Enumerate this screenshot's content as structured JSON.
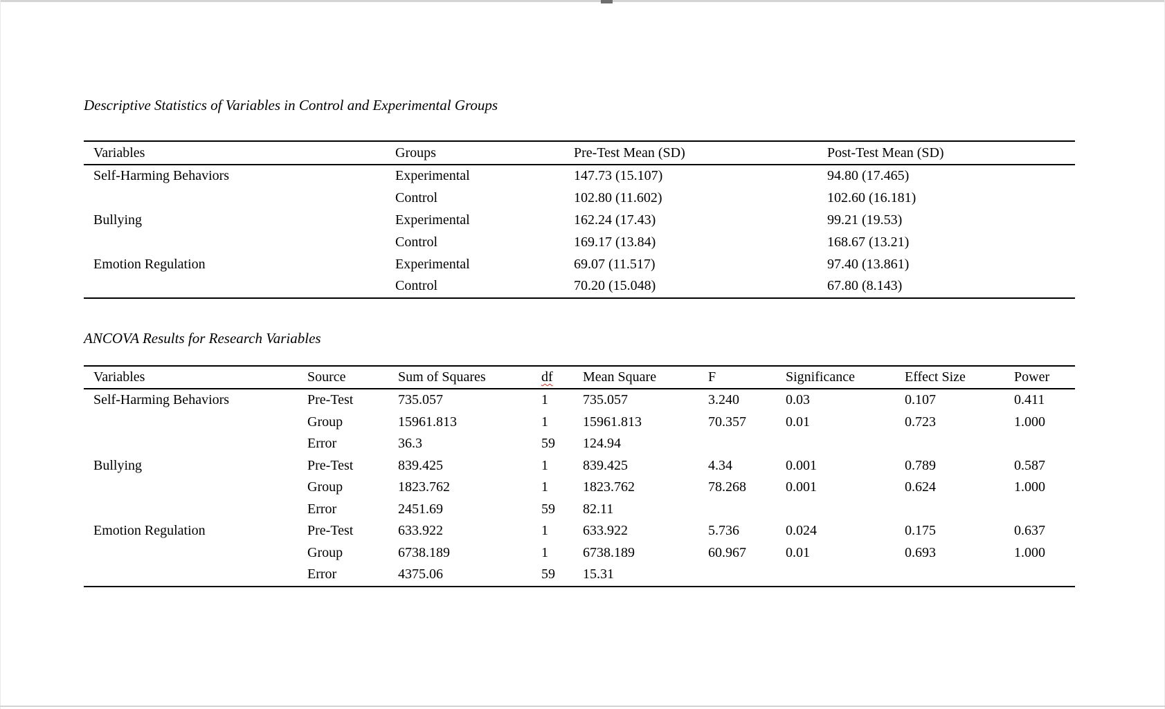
{
  "colors": {
    "rule": "#000000",
    "misspell_underline": "#e02b20",
    "edge_strip": "#d4d4d4",
    "scroll_thumb": "#6e6e6e"
  },
  "descriptives": {
    "title": "Descriptive Statistics of Variables in Control and Experimental Groups",
    "columns": [
      "Variables",
      "Groups",
      "Pre-Test Mean (SD)",
      "Post-Test Mean (SD)"
    ],
    "rows": [
      [
        "Self-Harming Behaviors",
        "Experimental",
        "147.73 (15.107)",
        "94.80 (17.465)"
      ],
      [
        "",
        "Control",
        "102.80 (11.602)",
        "102.60 (16.181)"
      ],
      [
        "Bullying",
        "Experimental",
        "162.24 (17.43)",
        "99.21 (19.53)"
      ],
      [
        "",
        "Control",
        "169.17 (13.84)",
        "168.67 (13.21)"
      ],
      [
        "Emotion Regulation",
        "Experimental",
        "69.07 (11.517)",
        "97.40 (13.861)"
      ],
      [
        "",
        "Control",
        "70.20 (15.048)",
        "67.80 (8.143)"
      ]
    ]
  },
  "ancova": {
    "title": "ANCOVA Results for Research Variables",
    "columns": [
      "Variables",
      "Source",
      "Sum of Squares",
      "df",
      "Mean Square",
      "F",
      "Significance",
      "Effect Size",
      "Power"
    ],
    "flagged_header": "df",
    "rows": [
      [
        "Self-Harming Behaviors",
        "Pre-Test",
        "735.057",
        "1",
        "735.057",
        "3.240",
        "0.03",
        "0.107",
        "0.411"
      ],
      [
        "",
        "Group",
        "15961.813",
        "1",
        "15961.813",
        "70.357",
        "0.01",
        "0.723",
        "1.000"
      ],
      [
        "",
        "Error",
        "36.3",
        "59",
        "124.94",
        "",
        "",
        "",
        ""
      ],
      [
        "Bullying",
        "Pre-Test",
        "839.425",
        "1",
        "839.425",
        "4.34",
        "0.001",
        "0.789",
        "0.587"
      ],
      [
        "",
        "Group",
        "1823.762",
        "1",
        "1823.762",
        "78.268",
        "0.001",
        "0.624",
        "1.000"
      ],
      [
        "",
        "Error",
        "2451.69",
        "59",
        "82.11",
        "",
        "",
        "",
        ""
      ],
      [
        "Emotion Regulation",
        "Pre-Test",
        "633.922",
        "1",
        "633.922",
        "5.736",
        "0.024",
        "0.175",
        "0.637"
      ],
      [
        "",
        "Group",
        "6738.189",
        "1",
        "6738.189",
        "60.967",
        "0.01",
        "0.693",
        "1.000"
      ],
      [
        "",
        "Error",
        "4375.06",
        "59",
        "15.31",
        "",
        "",
        "",
        ""
      ]
    ]
  }
}
